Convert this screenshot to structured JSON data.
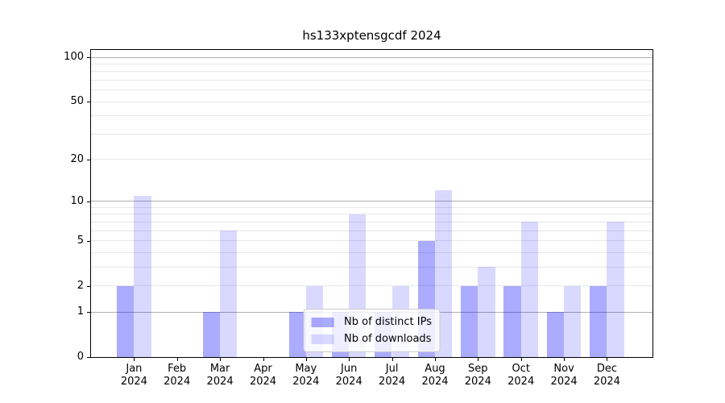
{
  "chart_data": {
    "type": "bar",
    "title": "hs133xptensgcdf 2024",
    "categories": [
      "Jan 2024",
      "Feb 2024",
      "Mar 2024",
      "Apr 2024",
      "May 2024",
      "Jun 2024",
      "Jul 2024",
      "Aug 2024",
      "Sep 2024",
      "Oct 2024",
      "Nov 2024",
      "Dec 2024"
    ],
    "x_tick_months": [
      "Jan",
      "Feb",
      "Mar",
      "Apr",
      "May",
      "Jun",
      "Jul",
      "Aug",
      "Sep",
      "Oct",
      "Nov",
      "Dec"
    ],
    "x_tick_year": "2024",
    "series": [
      {
        "name": "Nb of distinct IPs",
        "color": "rgba(0,0,255,0.33)",
        "values": [
          2,
          0,
          1,
          0,
          1,
          1,
          1,
          5,
          2,
          2,
          1,
          2
        ]
      },
      {
        "name": "Nb of downloads",
        "color": "rgba(0,0,255,0.15)",
        "values": [
          11,
          0,
          6,
          0,
          2,
          8,
          2,
          12,
          3,
          7,
          2,
          7
        ]
      }
    ],
    "xlabel": "",
    "ylabel": "",
    "y_axis": {
      "scale": "log1p",
      "ticks": [
        0,
        1,
        2,
        5,
        10,
        20,
        50,
        100
      ],
      "major_gridlines": [
        1,
        10,
        100
      ],
      "minor_gridlines": [
        2,
        3,
        4,
        5,
        6,
        7,
        8,
        9,
        20,
        30,
        40,
        50,
        60,
        70,
        80,
        90
      ],
      "ylim": [
        0,
        112
      ]
    },
    "legend": {
      "position": "lower center"
    },
    "grid": true,
    "bar_width_fraction": 0.4,
    "colors": {
      "major_grid": "#b0b0b0",
      "minor_grid": "#e8e8e8",
      "spine": "#000000",
      "background": "#ffffff"
    }
  }
}
